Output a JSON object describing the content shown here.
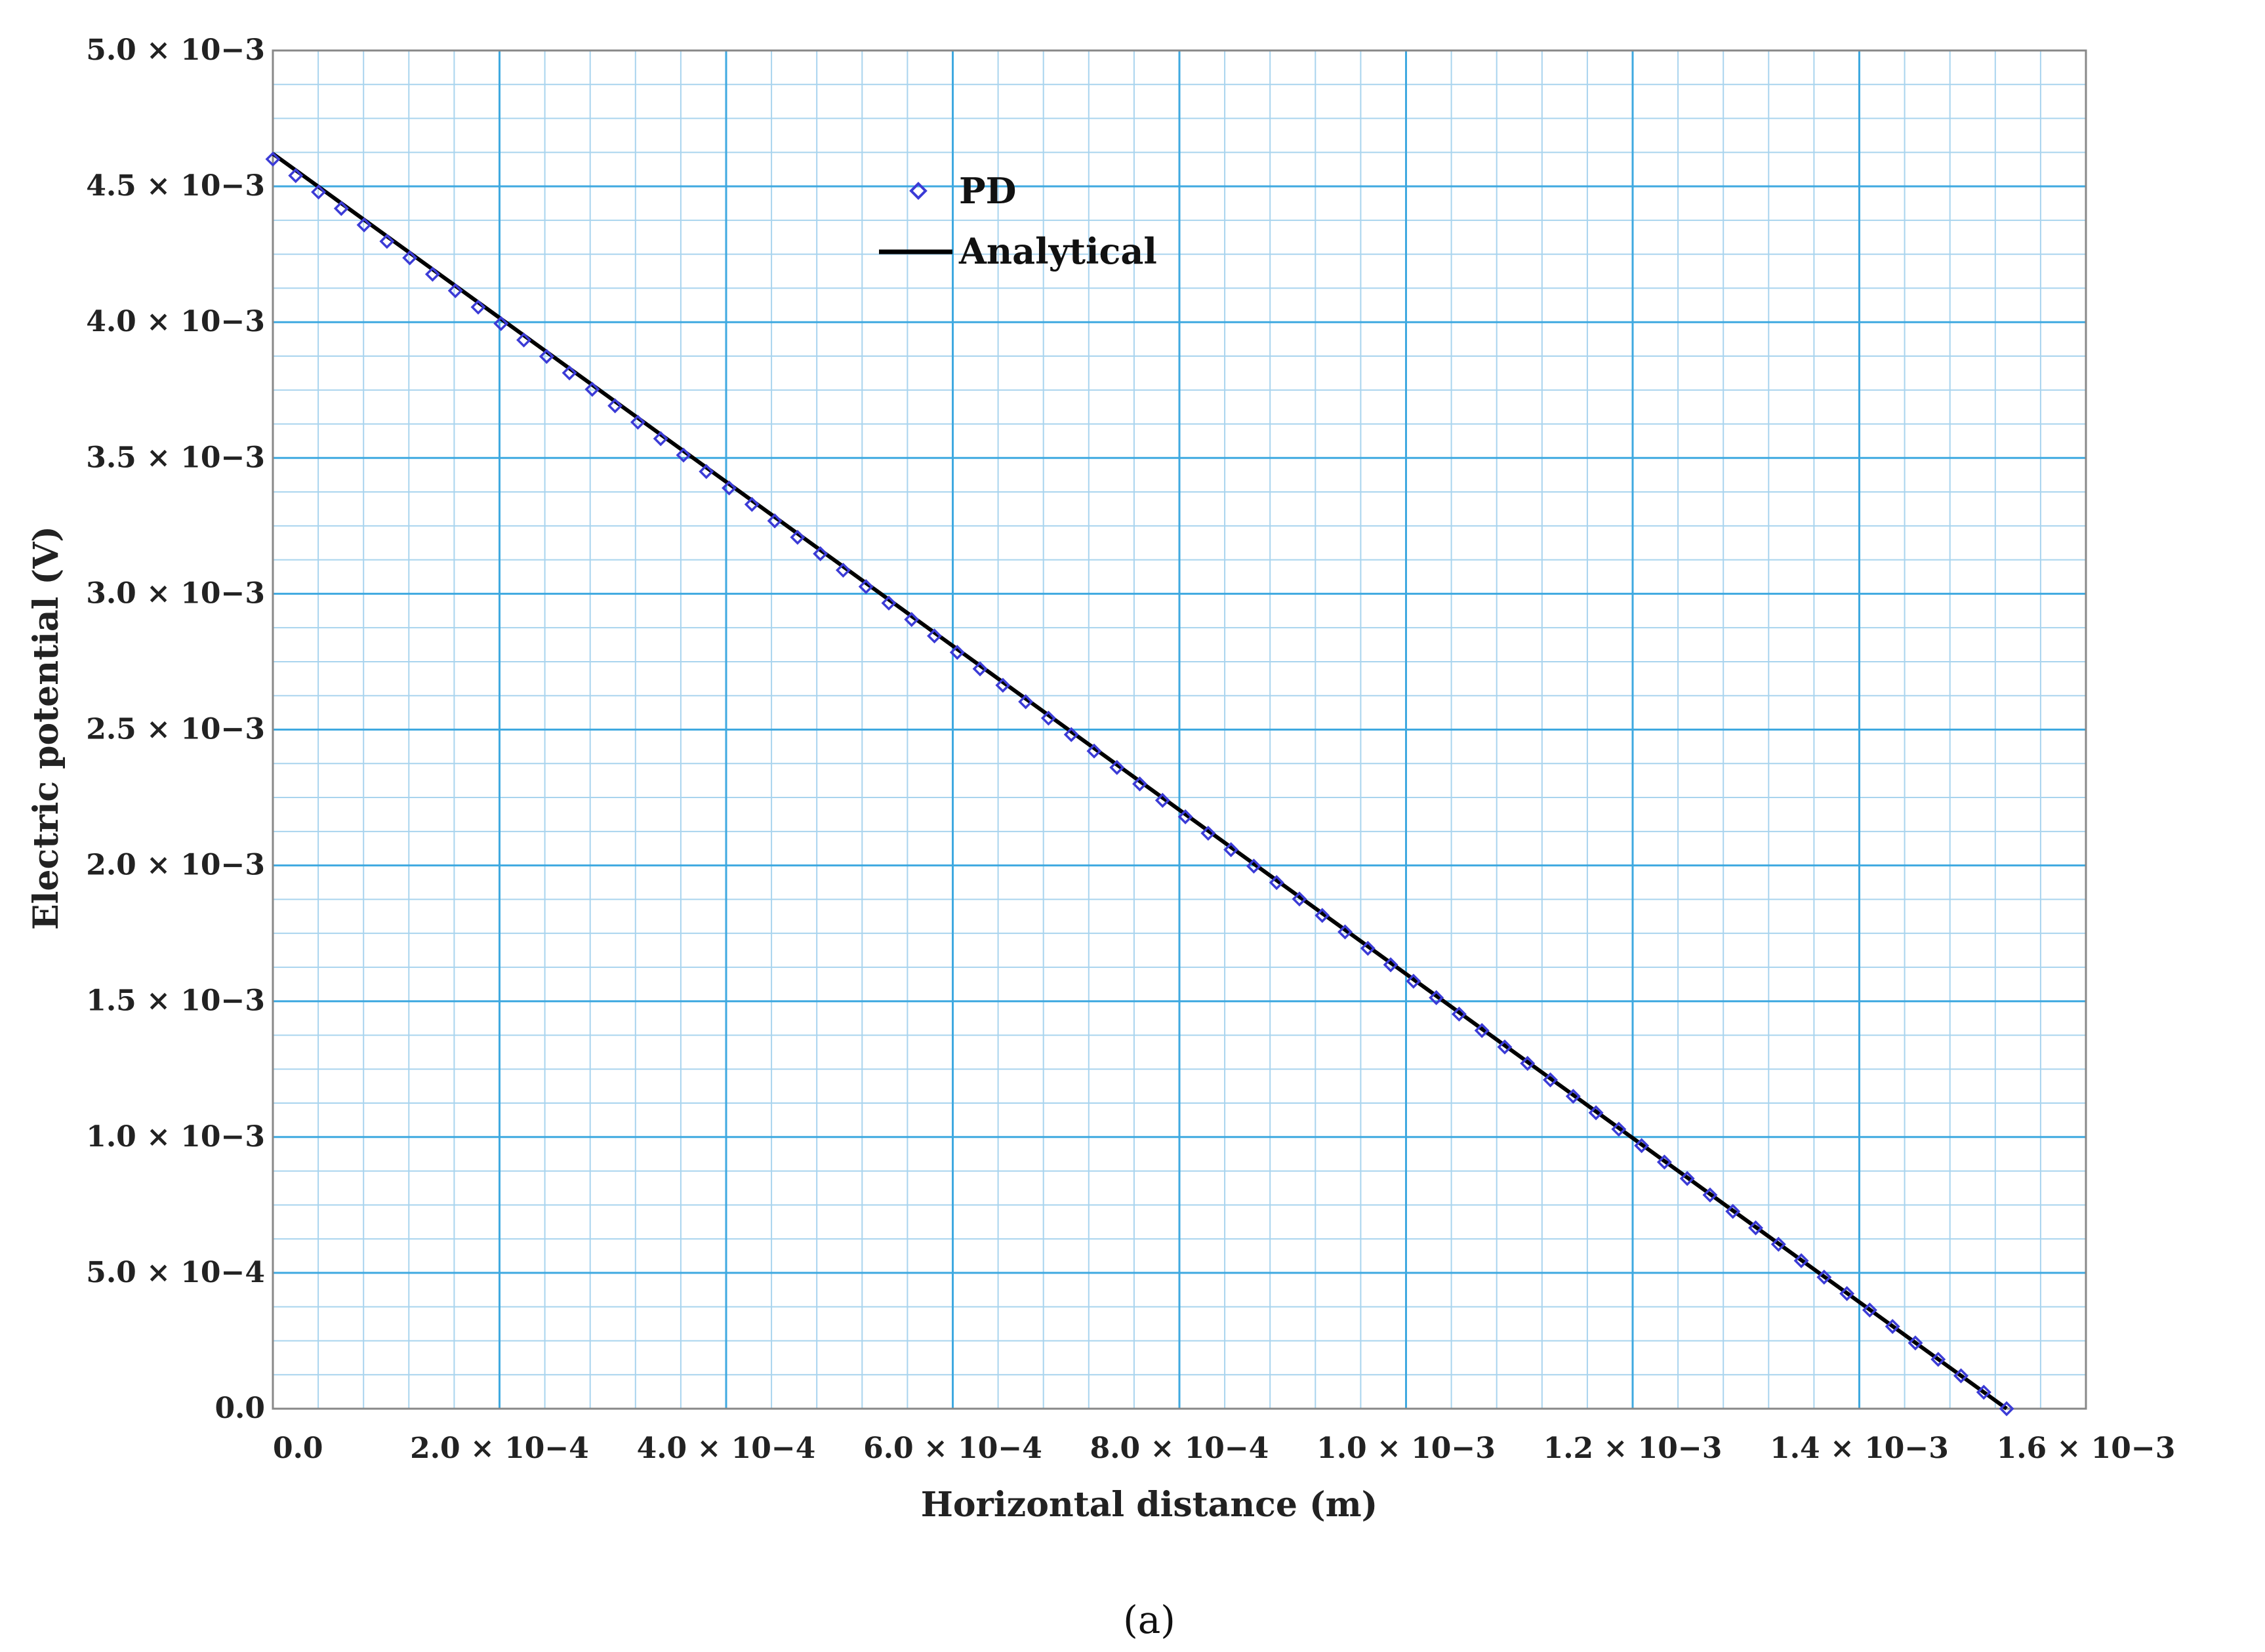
{
  "chart_data": {
    "type": "scatter",
    "xlabel": "Horizontal distance (m)",
    "ylabel": "Electric potential (V)",
    "xlim": [
      0,
      0.0016
    ],
    "ylim": [
      0,
      0.005
    ],
    "x_ticks": [
      0,
      0.0002,
      0.0004,
      0.0006,
      0.0008,
      0.001,
      0.0012,
      0.0014,
      0.0016
    ],
    "x_tick_labels": [
      "0.0",
      "2.0 × 10−4",
      "4.0 × 10−4",
      "6.0 × 10−4",
      "8.0 × 10−4",
      "1.0 × 10−3",
      "1.2 × 10−3",
      "1.4 × 10−3",
      "1.6 × 10−3"
    ],
    "y_ticks": [
      0,
      0.0005,
      0.001,
      0.0015,
      0.002,
      0.0025,
      0.003,
      0.0035,
      0.004,
      0.0045,
      0.005
    ],
    "y_tick_labels": [
      "0.0",
      "5.0 × 10−4",
      "1.0 × 10−3",
      "1.5 × 10−3",
      "2.0 × 10−3",
      "2.5 × 10−3",
      "3.0 × 10−3",
      "3.5 × 10−3",
      "4.0 × 10−3",
      "4.5 × 10−3",
      "5.0 × 10−3"
    ],
    "grid": true,
    "grid_major_color": "#3fa9e0",
    "grid_minor_color": "#a9d4ee",
    "legend_position": "top-center",
    "series": [
      {
        "name": "PD",
        "kind": "scatter",
        "marker": "diamond-open",
        "color": "#3b3bd6",
        "x_start": 0,
        "x_end": 0.00153,
        "y_start": 0.0046,
        "y_end": 0,
        "point_count": 77
      },
      {
        "name": "Analytical",
        "kind": "line",
        "color": "#000000",
        "x": [
          0,
          0.00153
        ],
        "y": [
          0.00462,
          0
        ]
      }
    ],
    "panel_label": "(a)"
  }
}
